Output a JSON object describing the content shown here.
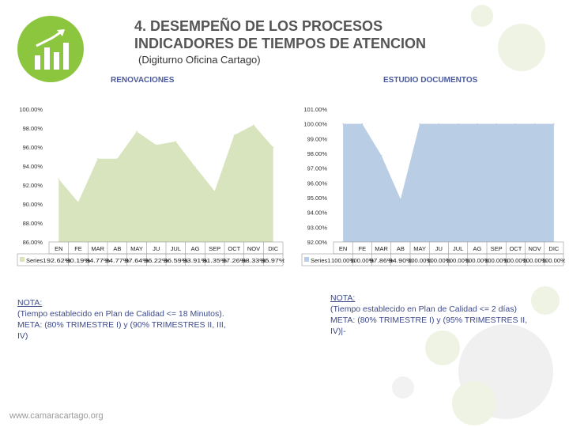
{
  "header": {
    "title_line1": "4. DESEMPEÑO DE LOS PROCESOS",
    "title_line2": "INDICADORES DE TIEMPOS DE ATENCION",
    "subtitle": "(Digiturno Oficina Cartago)"
  },
  "colors": {
    "accent": "#8cc63f",
    "area_left": "#d7e4bd",
    "area_right": "#b9cde5",
    "note_text": "#3d4a8a"
  },
  "chart_data": [
    {
      "type": "area",
      "title": "RENOVACIONES",
      "series_name": "Series1",
      "categories": [
        "EN",
        "FE",
        "MAR",
        "AB",
        "MAY",
        "JU",
        "JUL",
        "AG",
        "SEP",
        "OCT",
        "NOV",
        "DIC"
      ],
      "values": [
        92.62,
        90.19,
        94.77,
        94.77,
        97.64,
        96.22,
        96.59,
        93.91,
        91.35,
        97.26,
        98.33,
        95.97
      ],
      "value_labels": [
        "92.62%",
        "90.19%",
        "94.77%",
        "94.77%",
        "97.64%",
        "96.22%",
        "96.59%",
        "93.91%",
        "91.35%",
        "97.26%",
        "98.33%",
        "95.97%"
      ],
      "ylim": [
        86,
        100
      ],
      "yticks": [
        "100.00%",
        "98.00%",
        "96.00%",
        "94.00%",
        "92.00%",
        "90.00%",
        "88.00%",
        "86.00%"
      ]
    },
    {
      "type": "area",
      "title": "ESTUDIO DOCUMENTOS",
      "series_name": "Series1",
      "categories": [
        "EN",
        "FE",
        "MAR",
        "AB",
        "MAY",
        "JU",
        "JUL",
        "AG",
        "SEP",
        "OCT",
        "NOV",
        "DIC"
      ],
      "values": [
        100,
        100,
        97.86,
        94.9,
        100,
        100,
        100,
        100,
        100,
        100,
        100,
        100
      ],
      "value_labels": [
        "100.00%",
        "100.00%",
        "97.86%",
        "94.90%",
        "100.00%",
        "100.00%",
        "100.00%",
        "100.00%",
        "100.00%",
        "100.00%",
        "100.00%",
        "100.00%"
      ],
      "ylim": [
        92,
        101
      ],
      "yticks": [
        "101.00%",
        "100.00%",
        "99.00%",
        "98.00%",
        "97.00%",
        "96.00%",
        "95.00%",
        "94.00%",
        "93.00%",
        "92.00%"
      ]
    }
  ],
  "notes": {
    "left": {
      "heading": "NOTA:",
      "line1": "(Tiempo establecido en Plan de Calidad <= 18 Minutos).",
      "line2": "META: (80% TRIMESTRE I) y (90% TRIMESTRES II, III,",
      "line3": "IV)"
    },
    "right": {
      "heading": "NOTA:",
      "line1": "(Tiempo establecido en Plan de Calidad <= 2 días)",
      "line2": "META: (80% TRIMESTRE I) y (95% TRIMESTRES II,",
      "line3": "IV)|-"
    }
  },
  "footer": {
    "text": "www.camaracartago.org"
  }
}
